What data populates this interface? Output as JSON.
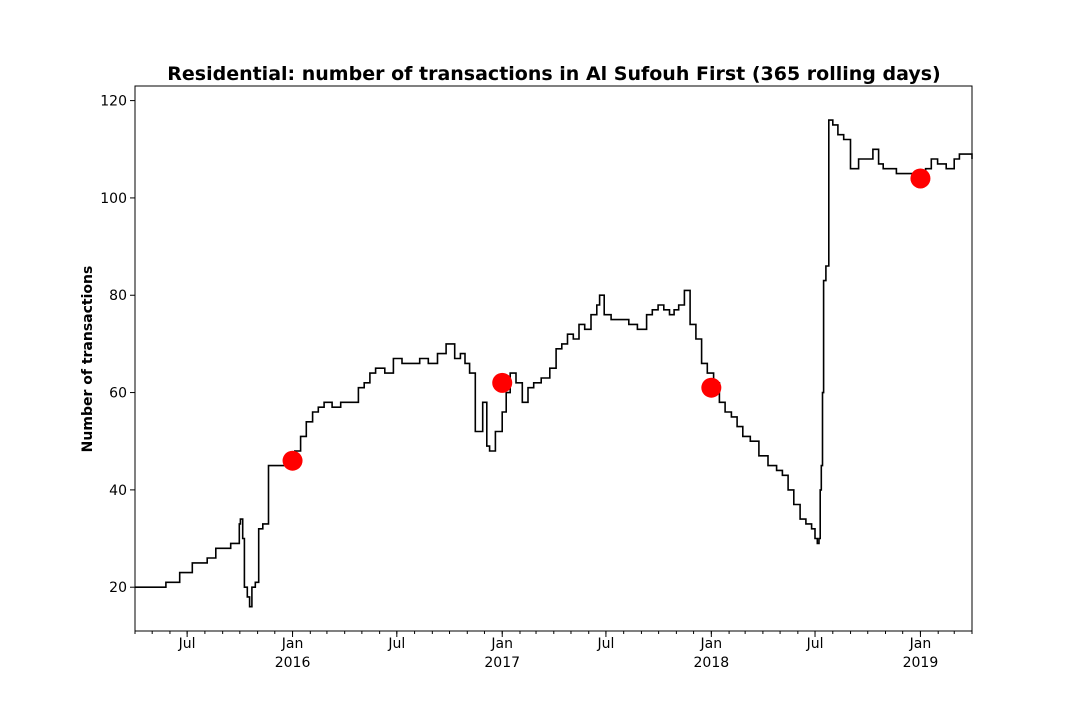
{
  "chart_data": {
    "type": "line",
    "title": "Residential: number of transactions in Al Sufouh First (365 rolling days)",
    "xlabel": "",
    "ylabel": "Number of transactions",
    "xlim": [
      "2015-04-01",
      "2019-04-01"
    ],
    "ylim": [
      11,
      123
    ],
    "grid": false,
    "legend": "none",
    "y_ticks": [
      20,
      40,
      60,
      80,
      100,
      120
    ],
    "x_ticks": [
      {
        "date": "2015-07-01",
        "label": "Jul",
        "year": ""
      },
      {
        "date": "2016-01-01",
        "label": "Jan",
        "year": "2016"
      },
      {
        "date": "2016-07-01",
        "label": "Jul",
        "year": ""
      },
      {
        "date": "2017-01-01",
        "label": "Jan",
        "year": "2017"
      },
      {
        "date": "2017-07-01",
        "label": "Jul",
        "year": ""
      },
      {
        "date": "2018-01-01",
        "label": "Jan",
        "year": "2018"
      },
      {
        "date": "2018-07-01",
        "label": "Jul",
        "year": ""
      },
      {
        "date": "2019-01-01",
        "label": "Jan",
        "year": "2019"
      }
    ],
    "series": [
      {
        "type": "step-line",
        "color": "#000000",
        "x": [
          "2015-04-01",
          "2015-05-08",
          "2015-05-25",
          "2015-06-18",
          "2015-07-10",
          "2015-07-20",
          "2015-08-05",
          "2015-08-20",
          "2015-09-15",
          "2015-09-30",
          "2015-10-02",
          "2015-10-06",
          "2015-10-09",
          "2015-10-14",
          "2015-10-18",
          "2015-10-22",
          "2015-10-28",
          "2015-11-03",
          "2015-11-10",
          "2015-11-20",
          "2015-12-10",
          "2015-12-25",
          "2016-01-05",
          "2016-01-15",
          "2016-01-25",
          "2016-02-05",
          "2016-02-15",
          "2016-02-25",
          "2016-03-10",
          "2016-03-25",
          "2016-04-10",
          "2016-04-25",
          "2016-05-05",
          "2016-05-15",
          "2016-05-25",
          "2016-06-10",
          "2016-06-25",
          "2016-07-10",
          "2016-07-25",
          "2016-08-10",
          "2016-08-25",
          "2016-09-10",
          "2016-09-25",
          "2016-10-10",
          "2016-10-20",
          "2016-10-28",
          "2016-11-05",
          "2016-11-15",
          "2016-11-22",
          "2016-11-28",
          "2016-12-05",
          "2016-12-10",
          "2016-12-20",
          "2017-01-01",
          "2017-01-08",
          "2017-01-15",
          "2017-01-25",
          "2017-02-05",
          "2017-02-15",
          "2017-02-25",
          "2017-03-10",
          "2017-03-25",
          "2017-04-05",
          "2017-04-15",
          "2017-04-25",
          "2017-05-05",
          "2017-05-15",
          "2017-05-25",
          "2017-06-05",
          "2017-06-15",
          "2017-06-20",
          "2017-06-28",
          "2017-07-10",
          "2017-07-25",
          "2017-08-10",
          "2017-08-25",
          "2017-09-10",
          "2017-09-20",
          "2017-09-30",
          "2017-10-10",
          "2017-10-20",
          "2017-10-28",
          "2017-11-05",
          "2017-11-15",
          "2017-11-25",
          "2017-12-05",
          "2017-12-15",
          "2017-12-25",
          "2018-01-05",
          "2018-01-15",
          "2018-01-25",
          "2018-02-05",
          "2018-02-15",
          "2018-02-25",
          "2018-03-10",
          "2018-03-25",
          "2018-04-10",
          "2018-04-25",
          "2018-05-05",
          "2018-05-15",
          "2018-05-25",
          "2018-06-05",
          "2018-06-15",
          "2018-06-25",
          "2018-07-01",
          "2018-07-05",
          "2018-07-08",
          "2018-07-10",
          "2018-07-12",
          "2018-07-14",
          "2018-07-16",
          "2018-07-20",
          "2018-07-25",
          "2018-08-01",
          "2018-08-10",
          "2018-08-20",
          "2018-09-01",
          "2018-09-15",
          "2018-09-25",
          "2018-10-10",
          "2018-10-20",
          "2018-10-28",
          "2018-11-05",
          "2018-11-20",
          "2018-12-10",
          "2018-12-25",
          "2019-01-10",
          "2019-01-20",
          "2019-01-31",
          "2019-02-15",
          "2019-03-01",
          "2019-03-10",
          "2019-03-31",
          "2019-04-01"
        ],
        "y": [
          20,
          20,
          21,
          23,
          25,
          25,
          26,
          28,
          29,
          33,
          34,
          30,
          20,
          18,
          16,
          20,
          21,
          32,
          33,
          45,
          45,
          45,
          48,
          51,
          54,
          56,
          57,
          58,
          57,
          58,
          58,
          61,
          62,
          64,
          65,
          64,
          67,
          66,
          66,
          67,
          66,
          68,
          70,
          67,
          68,
          66,
          64,
          52,
          52,
          58,
          49,
          48,
          52,
          56,
          60,
          64,
          62,
          58,
          61,
          62,
          63,
          65,
          69,
          70,
          72,
          71,
          74,
          73,
          76,
          78,
          80,
          76,
          75,
          75,
          74,
          73,
          76,
          77,
          78,
          77,
          76,
          77,
          78,
          81,
          74,
          71,
          66,
          64,
          62,
          58,
          56,
          55,
          53,
          51,
          50,
          47,
          45,
          44,
          43,
          40,
          37,
          34,
          33,
          32,
          30,
          29,
          30,
          40,
          45,
          60,
          83,
          86,
          116,
          115,
          113,
          112,
          106,
          108,
          108,
          110,
          107,
          106,
          106,
          105,
          105,
          105,
          106,
          108,
          107,
          106,
          108,
          109,
          109,
          108
        ]
      }
    ],
    "markers": {
      "color": "#ff0000",
      "points": [
        {
          "x": "2016-01-01",
          "y": 46
        },
        {
          "x": "2017-01-01",
          "y": 62
        },
        {
          "x": "2018-01-01",
          "y": 61
        },
        {
          "x": "2019-01-01",
          "y": 104
        }
      ]
    }
  }
}
